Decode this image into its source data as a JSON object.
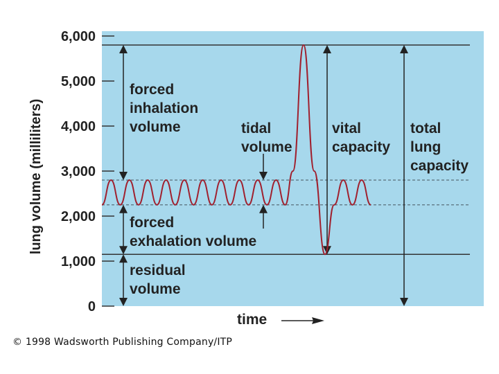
{
  "chart_data": {
    "type": "line",
    "ylabel": "lung volume (milliliters)",
    "xlabel": "time",
    "ylim": [
      0,
      6000
    ],
    "yticks": [
      "6,000",
      "5,000",
      "4,000",
      "3,000",
      "2,000",
      "1,000",
      "0"
    ],
    "ytick_values": [
      6000,
      5000,
      4000,
      3000,
      2000,
      1000,
      0
    ],
    "grid": false,
    "colors": {
      "background": "#a7d8ec",
      "trace": "#a0202e",
      "lines": "#333333"
    },
    "reference_levels": [
      {
        "name": "total lung capacity top",
        "y": 5800
      },
      {
        "name": "tidal inspiration",
        "y": 2800
      },
      {
        "name": "tidal expiration",
        "y": 2250
      },
      {
        "name": "residual volume top",
        "y": 1150
      }
    ],
    "series": [
      {
        "trace": [
          [
            0.0,
            2250
          ],
          [
            0.03,
            2800
          ],
          [
            0.06,
            2250
          ],
          [
            0.09,
            2800
          ],
          [
            0.12,
            2250
          ],
          [
            0.15,
            2800
          ],
          [
            0.18,
            2250
          ],
          [
            0.21,
            2800
          ],
          [
            0.24,
            2250
          ],
          [
            0.27,
            2800
          ],
          [
            0.3,
            2250
          ],
          [
            0.33,
            2800
          ],
          [
            0.36,
            2250
          ],
          [
            0.39,
            2800
          ],
          [
            0.42,
            2250
          ],
          [
            0.45,
            2800
          ],
          [
            0.48,
            2250
          ],
          [
            0.51,
            2800
          ],
          [
            0.54,
            2250
          ],
          [
            0.57,
            2800
          ],
          [
            0.6,
            2250
          ],
          [
            0.625,
            3000
          ],
          [
            0.66,
            5800
          ],
          [
            0.695,
            3000
          ],
          [
            0.73,
            1150
          ],
          [
            0.76,
            2250
          ],
          [
            0.79,
            2800
          ],
          [
            0.82,
            2250
          ],
          [
            0.85,
            2800
          ],
          [
            0.88,
            2250
          ]
        ]
      }
    ],
    "annotations": {
      "forced_inhalation": [
        "forced",
        "inhalation",
        "volume"
      ],
      "tidal": [
        "tidal",
        "volume"
      ],
      "vital": [
        "vital",
        "capacity"
      ],
      "total": [
        "total",
        "lung",
        "capacity"
      ],
      "forced_exhalation": [
        "forced",
        "exhalation volume"
      ],
      "residual": [
        "residual",
        "volume"
      ]
    }
  },
  "credit": "© 1998 Wadsworth Publishing Company/ITP"
}
